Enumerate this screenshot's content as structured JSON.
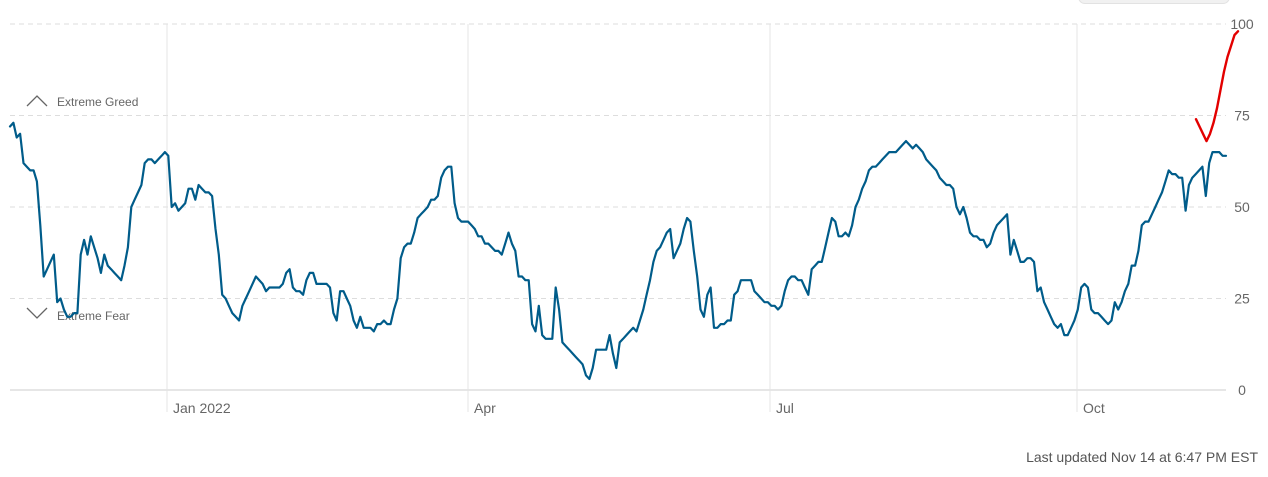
{
  "footer": {
    "updated": "Last updated Nov 14 at 6:47 PM EST"
  },
  "chart_data": {
    "type": "line",
    "x_tick_labels": [
      "Jan 2022",
      "Apr",
      "Jul",
      "Oct"
    ],
    "y_ticks": [
      0,
      25,
      50,
      75,
      100
    ],
    "ylim": [
      0,
      100
    ],
    "grid": true,
    "zones": [
      {
        "label": "Extreme Greed",
        "icon": "chevron-up-icon"
      },
      {
        "label": "Extreme Fear",
        "icon": "chevron-down-icon"
      }
    ],
    "colors": {
      "line": "#005c8a",
      "annotation": "#e30000",
      "grid": "#dddddd",
      "text": "#666666"
    },
    "series": [
      {
        "values": [
          72,
          73,
          69,
          70,
          62,
          61,
          60,
          60,
          57,
          45,
          31,
          33,
          35,
          37,
          24,
          25,
          22,
          20,
          20,
          21,
          21,
          37,
          41,
          37,
          42,
          39,
          36,
          32,
          37,
          34,
          33,
          32,
          31,
          30,
          34,
          39,
          50,
          52,
          54,
          56,
          62,
          63,
          63,
          62,
          63,
          64,
          65,
          64,
          50,
          51,
          49,
          50,
          51,
          55,
          55,
          52,
          56,
          55,
          54,
          54,
          53,
          44,
          37,
          26,
          25,
          23,
          21,
          20,
          19,
          23,
          25,
          27,
          29,
          31,
          30,
          29,
          27,
          28,
          28,
          28,
          28,
          29,
          32,
          33,
          28,
          27,
          27,
          26,
          30,
          32,
          32,
          29,
          29,
          29,
          29,
          28,
          21,
          19,
          27,
          27,
          25,
          23,
          19,
          17,
          20,
          17,
          17,
          17,
          16,
          18,
          18,
          19,
          18,
          18,
          22,
          25,
          36,
          39,
          40,
          40,
          43,
          47,
          48,
          49,
          50,
          52,
          52,
          53,
          58,
          60,
          61,
          61,
          51,
          47,
          46,
          46,
          46,
          45,
          44,
          42,
          42,
          40,
          40,
          39,
          38,
          38,
          37,
          40,
          43,
          40,
          38,
          31,
          31,
          30,
          30,
          18,
          16,
          23,
          15,
          14,
          14,
          14,
          28,
          22,
          13,
          12,
          11,
          10,
          9,
          8,
          7,
          4,
          3,
          6,
          11,
          11,
          11,
          11,
          15,
          10,
          6,
          13,
          14,
          15,
          16,
          17,
          16,
          19,
          22,
          26,
          30,
          35,
          38,
          39,
          41,
          43,
          44,
          36,
          38,
          40,
          44,
          47,
          46,
          38,
          31,
          22,
          20,
          26,
          28,
          17,
          17,
          18,
          18,
          19,
          19,
          26,
          27,
          30,
          30,
          30,
          30,
          27,
          26,
          25,
          24,
          24,
          23,
          23,
          22,
          23,
          27,
          30,
          31,
          31,
          30,
          30,
          28,
          26,
          33,
          34,
          35,
          35,
          39,
          43,
          47,
          46,
          42,
          42,
          43,
          42,
          45,
          50,
          52,
          55,
          57,
          60,
          61,
          61,
          62,
          63,
          64,
          65,
          65,
          65,
          66,
          67,
          68,
          67,
          66,
          67,
          66,
          65,
          63,
          62,
          61,
          60,
          58,
          57,
          56,
          56,
          55,
          50,
          48,
          50,
          47,
          43,
          42,
          42,
          41,
          41,
          39,
          40,
          43,
          45,
          46,
          47,
          48,
          37,
          41,
          38,
          35,
          35,
          36,
          36,
          35,
          27,
          28,
          24,
          22,
          20,
          18,
          17,
          18,
          15,
          15,
          17,
          19,
          22,
          28,
          29,
          28,
          22,
          21,
          21,
          20,
          19,
          18,
          19,
          24,
          22,
          24,
          27,
          29,
          34,
          34,
          38,
          45,
          46,
          46,
          48,
          50,
          52,
          54,
          57,
          60,
          59,
          59,
          58,
          58,
          49,
          56,
          58,
          59,
          60,
          61,
          53,
          62,
          65,
          65,
          65,
          64,
          64
        ],
        "stroke": "line"
      },
      {
        "values": [
          74,
          72,
          70,
          68,
          70,
          73,
          77,
          82,
          87,
          91,
          94,
          97,
          98
        ],
        "stroke": "annotation"
      }
    ]
  }
}
